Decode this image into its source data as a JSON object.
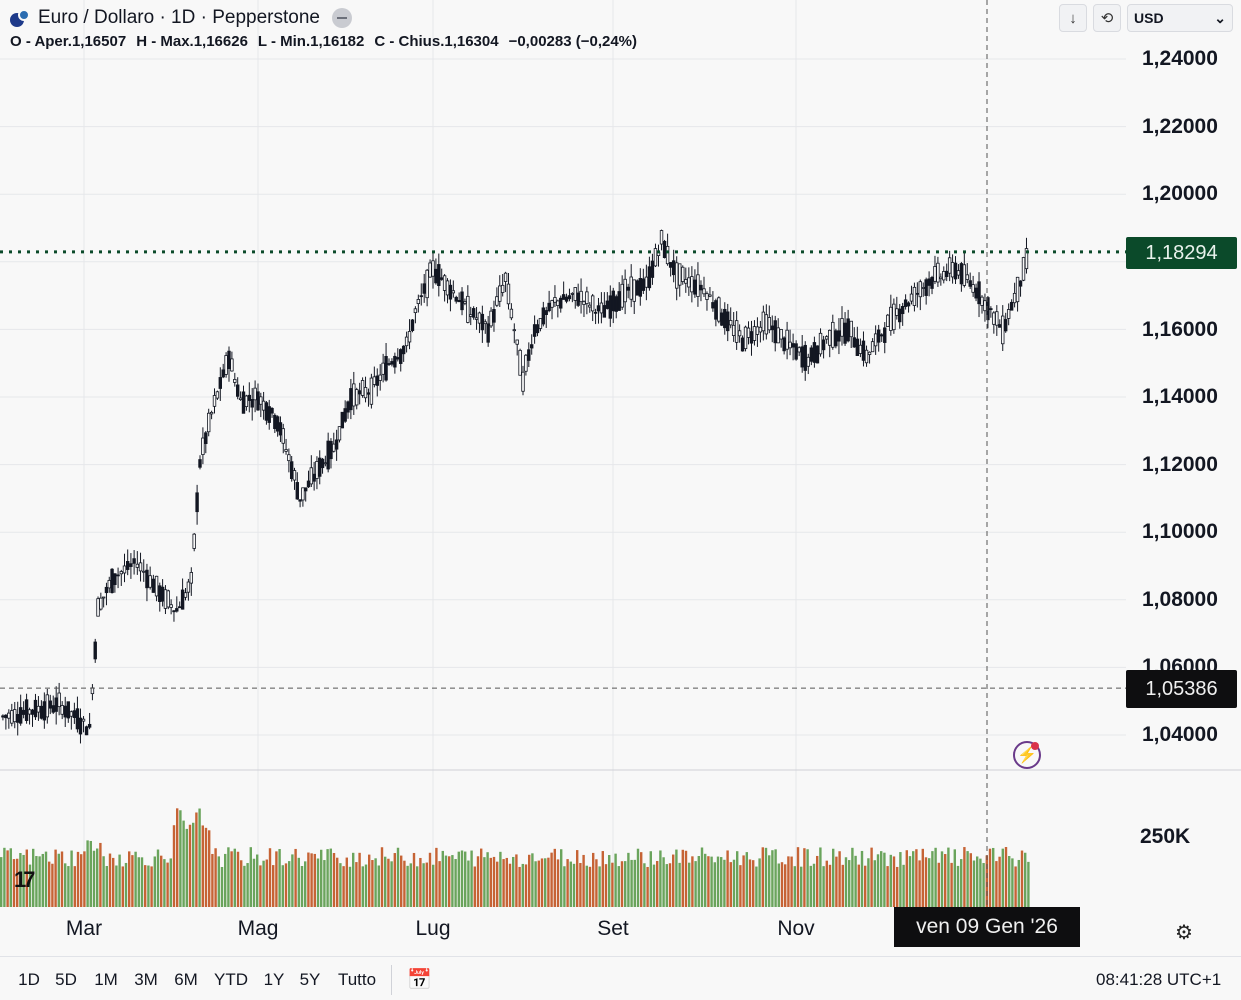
{
  "header": {
    "title": "Euro / Dollaro · 1D · Pepperstone",
    "ohlc": [
      "O - Aper.1,16507",
      "H - Max.1,16626",
      "L - Min.1,16182",
      "C - Chius.1,16304",
      "−0,00283 (−0,24%)"
    ],
    "currency": "USD",
    "currency_icon": "chevron-down-icon",
    "controls": [
      "arrow-down-icon",
      "refresh-icon"
    ]
  },
  "price_axis": {
    "labels": [
      "1,24000",
      "1,22000",
      "1,20000",
      "1,16000",
      "1,14000",
      "1,12000",
      "1,10000",
      "1,08000",
      "1,06000",
      "1,04000"
    ],
    "current_price": "1,18294",
    "cursor_price": "1,05386",
    "volume_label": "250K"
  },
  "time_axis": {
    "labels": [
      "Mar",
      "Mag",
      "Lug",
      "Set",
      "Nov"
    ],
    "cursor_date": "ven 09 Gen '26"
  },
  "bottom_bar": {
    "ranges": [
      "1D",
      "5D",
      "1M",
      "3M",
      "6M",
      "YTD",
      "1Y",
      "5Y",
      "Tutto"
    ],
    "clock": "08:41:28 UTC+1"
  },
  "colors": {
    "background": "#f8f8f8",
    "candle": "#131722",
    "current_price_tag": "#0b4a2a",
    "volume_up": "#5a9a4a",
    "volume_down": "#c0521f"
  },
  "chart_data": {
    "type": "candlestick",
    "title": "Euro / Dollaro · 1D · Pepperstone",
    "ylim": [
      1.03,
      1.245
    ],
    "current_price": 1.18294,
    "cursor_price": 1.05386,
    "cursor_date": "ven 09 Gen '26",
    "close_points": [
      {
        "x": "Feb 5",
        "close": 1.035
      },
      {
        "x": "Feb 15",
        "close": 1.045
      },
      {
        "x": "Feb 25",
        "close": 1.049
      },
      {
        "x": "Mar 3",
        "close": 1.042
      },
      {
        "x": "Mar 6",
        "close": 1.078
      },
      {
        "x": "Mar 12",
        "close": 1.087
      },
      {
        "x": "Mar 20",
        "close": 1.091
      },
      {
        "x": "Mar 28",
        "close": 1.082
      },
      {
        "x": "Apr 3",
        "close": 1.077
      },
      {
        "x": "Apr 8",
        "close": 1.085
      },
      {
        "x": "Apr 11",
        "close": 1.121
      },
      {
        "x": "Apr 15",
        "close": 1.135
      },
      {
        "x": "Apr 21",
        "close": 1.152
      },
      {
        "x": "Apr 25",
        "close": 1.139
      },
      {
        "x": "May 1",
        "close": 1.14
      },
      {
        "x": "May 8",
        "close": 1.133
      },
      {
        "x": "May 12",
        "close": 1.122
      },
      {
        "x": "May 16",
        "close": 1.11
      },
      {
        "x": "May 22",
        "close": 1.118
      },
      {
        "x": "May 28",
        "close": 1.125
      },
      {
        "x": "Jun 3",
        "close": 1.14
      },
      {
        "x": "Jun 10",
        "close": 1.142
      },
      {
        "x": "Jun 16",
        "close": 1.15
      },
      {
        "x": "Jun 22",
        "close": 1.155
      },
      {
        "x": "Jun 25",
        "close": 1.165
      },
      {
        "x": "Jul 1",
        "close": 1.178
      },
      {
        "x": "Jul 7",
        "close": 1.172
      },
      {
        "x": "Jul 14",
        "close": 1.165
      },
      {
        "x": "Jul 20",
        "close": 1.16
      },
      {
        "x": "Jul 26",
        "close": 1.175
      },
      {
        "x": "Aug 1",
        "close": 1.145
      },
      {
        "x": "Aug 5",
        "close": 1.16
      },
      {
        "x": "Aug 12",
        "close": 1.168
      },
      {
        "x": "Aug 20",
        "close": 1.17
      },
      {
        "x": "Aug 28",
        "close": 1.165
      },
      {
        "x": "Sep 5",
        "close": 1.171
      },
      {
        "x": "Sep 12",
        "close": 1.173
      },
      {
        "x": "Sep 17",
        "close": 1.186
      },
      {
        "x": "Sep 22",
        "close": 1.176
      },
      {
        "x": "Oct 1",
        "close": 1.172
      },
      {
        "x": "Oct 8",
        "close": 1.163
      },
      {
        "x": "Oct 14",
        "close": 1.157
      },
      {
        "x": "Oct 22",
        "close": 1.162
      },
      {
        "x": "Oct 30",
        "close": 1.155
      },
      {
        "x": "Nov 5",
        "close": 1.151
      },
      {
        "x": "Nov 12",
        "close": 1.158
      },
      {
        "x": "Nov 18",
        "close": 1.16
      },
      {
        "x": "Nov 24",
        "close": 1.152
      },
      {
        "x": "Dec 3",
        "close": 1.164
      },
      {
        "x": "Dec 10",
        "close": 1.17
      },
      {
        "x": "Dec 16",
        "close": 1.175
      },
      {
        "x": "Dec 24",
        "close": 1.178
      },
      {
        "x": "Dec 31",
        "close": 1.172
      },
      {
        "x": "Jan 5",
        "close": 1.165
      },
      {
        "x": "Jan 9",
        "close": 1.16
      },
      {
        "x": "Jan 14",
        "close": 1.172
      },
      {
        "x": "Jan 18",
        "close": 1.183
      }
    ]
  }
}
